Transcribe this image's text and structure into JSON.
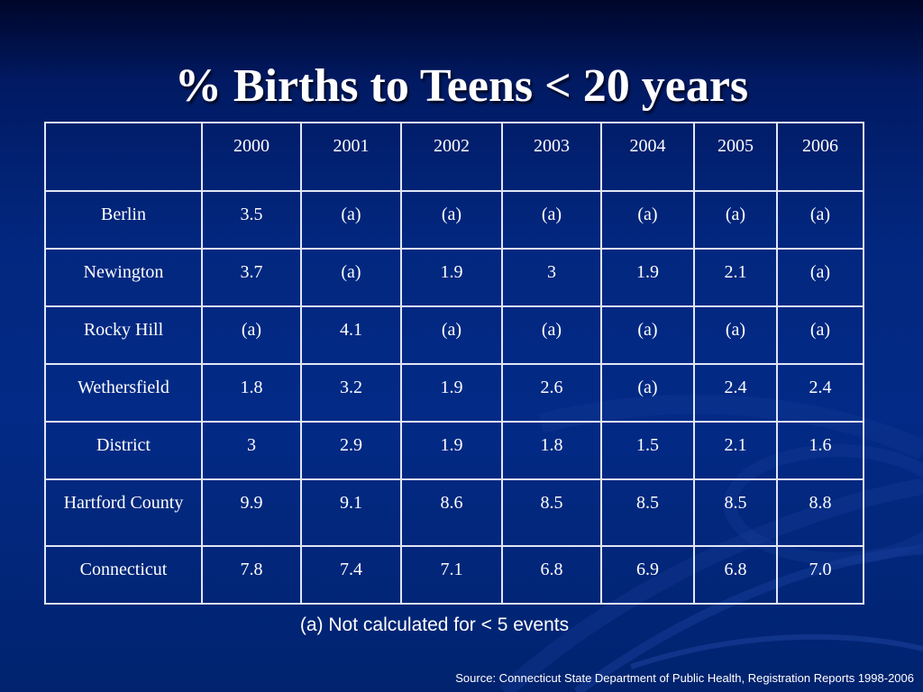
{
  "title": "% Births to Teens < 20 years",
  "table": {
    "corner": "",
    "columns": [
      "2000",
      "2001",
      "2002",
      "2003",
      "2004",
      "2005",
      "2006"
    ],
    "rows": [
      {
        "label": "Berlin",
        "values": [
          "3.5",
          "(a)",
          "(a)",
          "(a)",
          "(a)",
          "(a)",
          "(a)"
        ]
      },
      {
        "label": "Newington",
        "values": [
          "3.7",
          "(a)",
          "1.9",
          "3",
          "1.9",
          "2.1",
          "(a)"
        ]
      },
      {
        "label": "Rocky Hill",
        "values": [
          "(a)",
          "4.1",
          "(a)",
          "(a)",
          "(a)",
          "(a)",
          "(a)"
        ]
      },
      {
        "label": "Wethersfield",
        "values": [
          "1.8",
          "3.2",
          "1.9",
          "2.6",
          "(a)",
          "2.4",
          "2.4"
        ]
      },
      {
        "label": "District",
        "values": [
          "3",
          "2.9",
          "1.9",
          "1.8",
          "1.5",
          "2.1",
          "1.6"
        ]
      },
      {
        "label": "Hartford County",
        "values": [
          "9.9",
          "9.1",
          "8.6",
          "8.5",
          "8.5",
          "8.5",
          "8.8"
        ]
      },
      {
        "label": "Connecticut",
        "values": [
          "7.8",
          "7.4",
          "7.1",
          "6.8",
          "6.9",
          "6.8",
          "7.0"
        ]
      }
    ]
  },
  "footnote": "(a) Not calculated for < 5 events",
  "source": "Source: Connecticut State Department of Public Health, Registration Reports 1998-2006",
  "colors": {
    "background": "#02277f",
    "text": "#ffffff",
    "grid": "#dfe6f5"
  }
}
